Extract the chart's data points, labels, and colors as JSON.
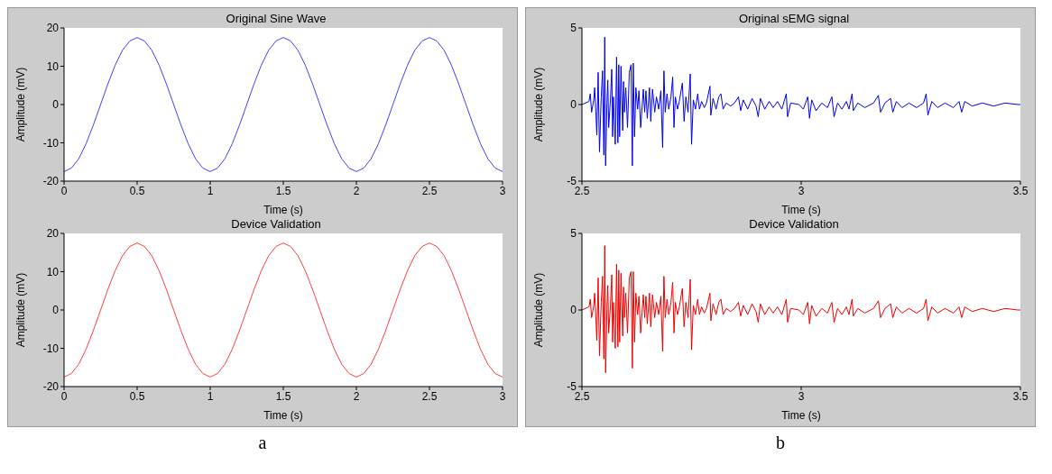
{
  "chart_data": [
    {
      "type": "line",
      "title": "Original Sine Wave",
      "xlabel": "Time (s)",
      "ylabel": "Amplitude (mV)",
      "xlim": [
        0,
        3
      ],
      "ylim": [
        -20,
        20
      ],
      "xticks": [
        0,
        0.5,
        1,
        1.5,
        2,
        2.5,
        3
      ],
      "yticks": [
        -20,
        -10,
        0,
        10,
        20
      ],
      "color": "#4040ff",
      "x": [
        0,
        0.05,
        0.1,
        0.15,
        0.2,
        0.25,
        0.3,
        0.35,
        0.4,
        0.45,
        0.5,
        0.55,
        0.6,
        0.65,
        0.7,
        0.75,
        0.8,
        0.85,
        0.9,
        0.95,
        1,
        1.05,
        1.1,
        1.15,
        1.2,
        1.25,
        1.3,
        1.35,
        1.4,
        1.45,
        1.5,
        1.55,
        1.6,
        1.65,
        1.7,
        1.75,
        1.8,
        1.85,
        1.9,
        1.95,
        2,
        2.05,
        2.1,
        2.15,
        2.2,
        2.25,
        2.3,
        2.35,
        2.4,
        2.45,
        2.5,
        2.55,
        2.6,
        2.65,
        2.7,
        2.75,
        2.8,
        2.85,
        2.9,
        2.95,
        3
      ],
      "values": [
        -17.5,
        -16.6,
        -14.2,
        -10.3,
        -5.4,
        0,
        5.4,
        10.3,
        14.2,
        16.6,
        17.5,
        16.6,
        14.2,
        10.3,
        5.4,
        0,
        -5.4,
        -10.3,
        -14.2,
        -16.6,
        -17.5,
        -16.6,
        -14.2,
        -10.3,
        -5.4,
        0,
        5.4,
        10.3,
        14.2,
        16.6,
        17.5,
        16.6,
        14.2,
        10.3,
        5.4,
        0,
        -5.4,
        -10.3,
        -14.2,
        -16.6,
        -17.5,
        -16.6,
        -14.2,
        -10.3,
        -5.4,
        0,
        5.4,
        10.3,
        14.2,
        16.6,
        17.5,
        16.6,
        14.2,
        10.3,
        5.4,
        0,
        -5.4,
        -10.3,
        -14.2,
        -16.6,
        -17.5
      ]
    },
    {
      "type": "line",
      "title": "Device Validation",
      "xlabel": "Time (s)",
      "ylabel": "Amplitude (mV)",
      "xlim": [
        0,
        3
      ],
      "ylim": [
        -20,
        20
      ],
      "xticks": [
        0,
        0.5,
        1,
        1.5,
        2,
        2.5,
        3
      ],
      "yticks": [
        -20,
        -10,
        0,
        10,
        20
      ],
      "color": "#ff4040",
      "annotations": [
        "a"
      ],
      "x": [
        0,
        0.05,
        0.1,
        0.15,
        0.2,
        0.25,
        0.3,
        0.35,
        0.4,
        0.45,
        0.5,
        0.55,
        0.6,
        0.65,
        0.7,
        0.75,
        0.8,
        0.85,
        0.9,
        0.95,
        1,
        1.05,
        1.1,
        1.15,
        1.2,
        1.25,
        1.3,
        1.35,
        1.4,
        1.45,
        1.5,
        1.55,
        1.6,
        1.65,
        1.7,
        1.75,
        1.8,
        1.85,
        1.9,
        1.95,
        2,
        2.05,
        2.1,
        2.15,
        2.2,
        2.25,
        2.3,
        2.35,
        2.4,
        2.45,
        2.5,
        2.55,
        2.6,
        2.65,
        2.7,
        2.75,
        2.8,
        2.85,
        2.9,
        2.95,
        3
      ],
      "values": [
        -17.5,
        -16.6,
        -14.2,
        -10.3,
        -5.4,
        0,
        5.4,
        10.3,
        14.2,
        16.6,
        17.5,
        16.6,
        14.2,
        10.3,
        5.4,
        0,
        -5.4,
        -10.3,
        -14.2,
        -16.6,
        -17.5,
        -16.6,
        -14.2,
        -10.3,
        -5.4,
        0,
        5.4,
        10.3,
        14.2,
        16.6,
        17.5,
        16.6,
        14.2,
        10.3,
        5.4,
        0,
        -5.4,
        -10.3,
        -14.2,
        -16.6,
        -17.5,
        -16.6,
        -14.2,
        -10.3,
        -5.4,
        0,
        5.4,
        10.3,
        14.2,
        16.6,
        17.5,
        16.6,
        14.2,
        10.3,
        5.4,
        0,
        -5.4,
        -10.3,
        -14.2,
        -16.6,
        -17.5
      ]
    },
    {
      "type": "line",
      "title": "Original sEMG signal",
      "xlabel": "Time (s)",
      "ylabel": "Amplitude (mV)",
      "xlim": [
        2.5,
        3.5
      ],
      "ylim": [
        -5,
        5
      ],
      "xticks": [
        2.5,
        3,
        3.5
      ],
      "yticks": [
        -5,
        0,
        5
      ],
      "color": "#0000ee",
      "x": [
        2.5,
        2.516,
        2.519,
        2.522,
        2.527,
        2.529,
        2.532,
        2.534,
        2.537,
        2.54,
        2.544,
        2.547,
        2.55,
        2.552,
        2.554,
        2.557,
        2.559,
        2.561,
        2.565,
        2.568,
        2.57,
        2.572,
        2.576,
        2.579,
        2.582,
        2.584,
        2.586,
        2.589,
        2.593,
        2.595,
        2.597,
        2.6,
        2.604,
        2.608,
        2.612,
        2.615,
        2.617,
        2.62,
        2.623,
        2.627,
        2.63,
        2.634,
        2.64,
        2.643,
        2.646,
        2.649,
        2.654,
        2.657,
        2.661,
        2.666,
        2.67,
        2.675,
        2.68,
        2.684,
        2.687,
        2.69,
        2.694,
        2.698,
        2.703,
        2.707,
        2.71,
        2.713,
        2.718,
        2.722,
        2.729,
        2.733,
        2.737,
        2.742,
        2.747,
        2.75,
        2.754,
        2.759,
        2.764,
        2.768,
        2.773,
        2.779,
        2.784,
        2.792,
        2.794,
        2.799,
        2.806,
        2.812,
        2.817,
        2.822,
        2.829,
        2.839,
        2.848,
        2.857,
        2.862,
        2.868,
        2.878,
        2.888,
        2.897,
        2.902,
        2.907,
        2.917,
        2.927,
        2.936,
        2.946,
        2.956,
        2.966,
        2.969,
        2.976,
        2.995,
        3.005,
        3.015,
        3.019,
        3.024,
        3.034,
        3.047,
        3.06,
        3.07,
        3.075,
        3.083,
        3.093,
        3.103,
        3.109,
        3.116,
        3.119,
        3.129,
        3.145,
        3.165,
        3.176,
        3.181,
        3.191,
        3.204,
        3.209,
        3.217,
        3.23,
        3.246,
        3.263,
        3.279,
        3.285,
        3.289,
        3.298,
        3.311,
        3.328,
        3.347,
        3.36,
        3.366,
        3.373,
        3.39,
        3.413,
        3.439,
        3.465,
        3.494,
        3.5
      ],
      "values": [
        0,
        0.2,
        0.7,
        -0.5,
        0.3,
        1.1,
        -0.7,
        -2.0,
        2.1,
        -3.1,
        0.5,
        2.2,
        -3.3,
        4.4,
        -4.0,
        0.1,
        1.6,
        -1.5,
        0.3,
        2.3,
        -2.1,
        0.5,
        -2.6,
        3.1,
        -2.5,
        2.6,
        -2.1,
        2.5,
        -1.7,
        1.5,
        -0.5,
        1.1,
        -1.5,
        2.1,
        2.6,
        -4.0,
        2.7,
        -2.1,
        1.1,
        -0.3,
        0.9,
        -1.5,
        1.0,
        -0.5,
        0.9,
        -0.9,
        1.1,
        -1.1,
        1.0,
        -0.5,
        0.5,
        -0.3,
        0.9,
        -2.8,
        2.2,
        -0.5,
        0.7,
        -0.3,
        0.5,
        1.8,
        -1.5,
        0.5,
        -0.3,
        0.2,
        1.4,
        -1.1,
        0.5,
        -0.5,
        2.0,
        -2.6,
        0.3,
        -0.3,
        0.7,
        -0.3,
        0.2,
        -0.2,
        0.1,
        1.2,
        -0.7,
        0.4,
        -0.3,
        0.5,
        0.7,
        -0.3,
        0.1,
        -0.1,
        0.1,
        0.5,
        -0.4,
        0.3,
        -0.3,
        0.4,
        -0.1,
        -0.8,
        0.4,
        -0.3,
        0.2,
        -0.2,
        0.2,
        -0.3,
        0.7,
        -0.8,
        0.1,
        0,
        -0.3,
        0.5,
        -0.9,
        0.3,
        -0.4,
        0.1,
        -0.2,
        0.5,
        -0.8,
        0.1,
        -0.3,
        0.2,
        -0.3,
        0.7,
        -0.4,
        0.1,
        -0.2,
        0.1,
        0.6,
        -0.5,
        0.1,
        0.4,
        -0.5,
        0.2,
        -0.2,
        0.1,
        -0.2,
        0.1,
        0.7,
        -0.7,
        0.2,
        -0.2,
        0.1,
        -0.2,
        0.2,
        -0.5,
        0.2,
        -0.1,
        0.1,
        -0.1,
        0.1,
        0,
        0
      ]
    },
    {
      "type": "line",
      "title": "Device Validation",
      "xlabel": "Time (s)",
      "ylabel": "Amplitude (mV)",
      "xlim": [
        2.5,
        3.5
      ],
      "ylim": [
        -5,
        5
      ],
      "xticks": [
        2.5,
        3,
        3.5
      ],
      "yticks": [
        -5,
        0,
        5
      ],
      "color": "#ee0000",
      "annotations": [
        "b"
      ],
      "x": [
        2.5,
        2.516,
        2.519,
        2.522,
        2.527,
        2.529,
        2.532,
        2.534,
        2.537,
        2.54,
        2.544,
        2.547,
        2.55,
        2.552,
        2.554,
        2.557,
        2.559,
        2.561,
        2.565,
        2.568,
        2.57,
        2.572,
        2.576,
        2.579,
        2.582,
        2.584,
        2.586,
        2.589,
        2.593,
        2.595,
        2.597,
        2.6,
        2.604,
        2.608,
        2.612,
        2.615,
        2.617,
        2.62,
        2.623,
        2.627,
        2.63,
        2.634,
        2.64,
        2.643,
        2.646,
        2.649,
        2.654,
        2.657,
        2.661,
        2.666,
        2.67,
        2.675,
        2.68,
        2.684,
        2.687,
        2.69,
        2.694,
        2.698,
        2.703,
        2.707,
        2.71,
        2.713,
        2.718,
        2.722,
        2.729,
        2.733,
        2.737,
        2.742,
        2.747,
        2.75,
        2.754,
        2.759,
        2.764,
        2.768,
        2.773,
        2.779,
        2.784,
        2.792,
        2.794,
        2.799,
        2.806,
        2.812,
        2.817,
        2.822,
        2.829,
        2.839,
        2.848,
        2.857,
        2.862,
        2.868,
        2.878,
        2.888,
        2.897,
        2.902,
        2.907,
        2.917,
        2.927,
        2.936,
        2.946,
        2.956,
        2.966,
        2.969,
        2.976,
        2.995,
        3.005,
        3.015,
        3.019,
        3.024,
        3.034,
        3.047,
        3.06,
        3.07,
        3.075,
        3.083,
        3.093,
        3.103,
        3.109,
        3.116,
        3.119,
        3.129,
        3.145,
        3.165,
        3.176,
        3.181,
        3.191,
        3.204,
        3.209,
        3.217,
        3.23,
        3.246,
        3.263,
        3.279,
        3.285,
        3.289,
        3.298,
        3.311,
        3.328,
        3.347,
        3.36,
        3.366,
        3.373,
        3.39,
        3.413,
        3.439,
        3.465,
        3.494,
        3.5
      ],
      "values": [
        0,
        0.2,
        0.7,
        -0.5,
        0.3,
        1.1,
        -0.7,
        -2.0,
        2.1,
        -3.0,
        0.5,
        2.2,
        -3.2,
        4.2,
        -4.1,
        0.1,
        1.6,
        -1.5,
        0.3,
        2.3,
        -2.1,
        0.5,
        -2.5,
        3.0,
        -2.4,
        2.6,
        -2.1,
        2.4,
        -1.7,
        1.5,
        -0.5,
        1.1,
        -1.5,
        2.1,
        2.5,
        -3.8,
        2.5,
        -2.1,
        1.1,
        -0.3,
        0.9,
        -1.5,
        1.0,
        -0.5,
        0.9,
        -0.9,
        1.1,
        -1.1,
        1.0,
        -0.5,
        0.5,
        -0.3,
        0.9,
        -2.7,
        2.2,
        -0.5,
        0.7,
        -0.3,
        0.5,
        1.8,
        -1.5,
        0.5,
        -0.3,
        0.2,
        1.4,
        -1.1,
        0.5,
        -0.5,
        2.0,
        -2.6,
        0.3,
        -0.3,
        0.7,
        -0.3,
        0.2,
        -0.2,
        0.1,
        1.1,
        -0.7,
        0.4,
        -0.3,
        0.5,
        0.7,
        -0.3,
        0.1,
        -0.1,
        0.1,
        0.5,
        -0.4,
        0.3,
        -0.3,
        0.4,
        -0.1,
        -0.8,
        0.4,
        -0.3,
        0.2,
        -0.2,
        0.2,
        -0.3,
        0.7,
        -0.8,
        0.1,
        0,
        -0.3,
        0.5,
        -0.9,
        0.3,
        -0.4,
        0.1,
        -0.2,
        0.5,
        -0.8,
        0.1,
        -0.3,
        0.2,
        -0.3,
        0.7,
        -0.4,
        0.1,
        -0.2,
        0.1,
        0.6,
        -0.5,
        0.1,
        0.4,
        -0.5,
        0.2,
        -0.2,
        0.1,
        -0.2,
        0.1,
        0.7,
        -0.7,
        0.2,
        -0.2,
        0.1,
        -0.2,
        0.2,
        -0.5,
        0.2,
        -0.1,
        0.1,
        -0.1,
        0.1,
        0,
        0
      ]
    }
  ]
}
